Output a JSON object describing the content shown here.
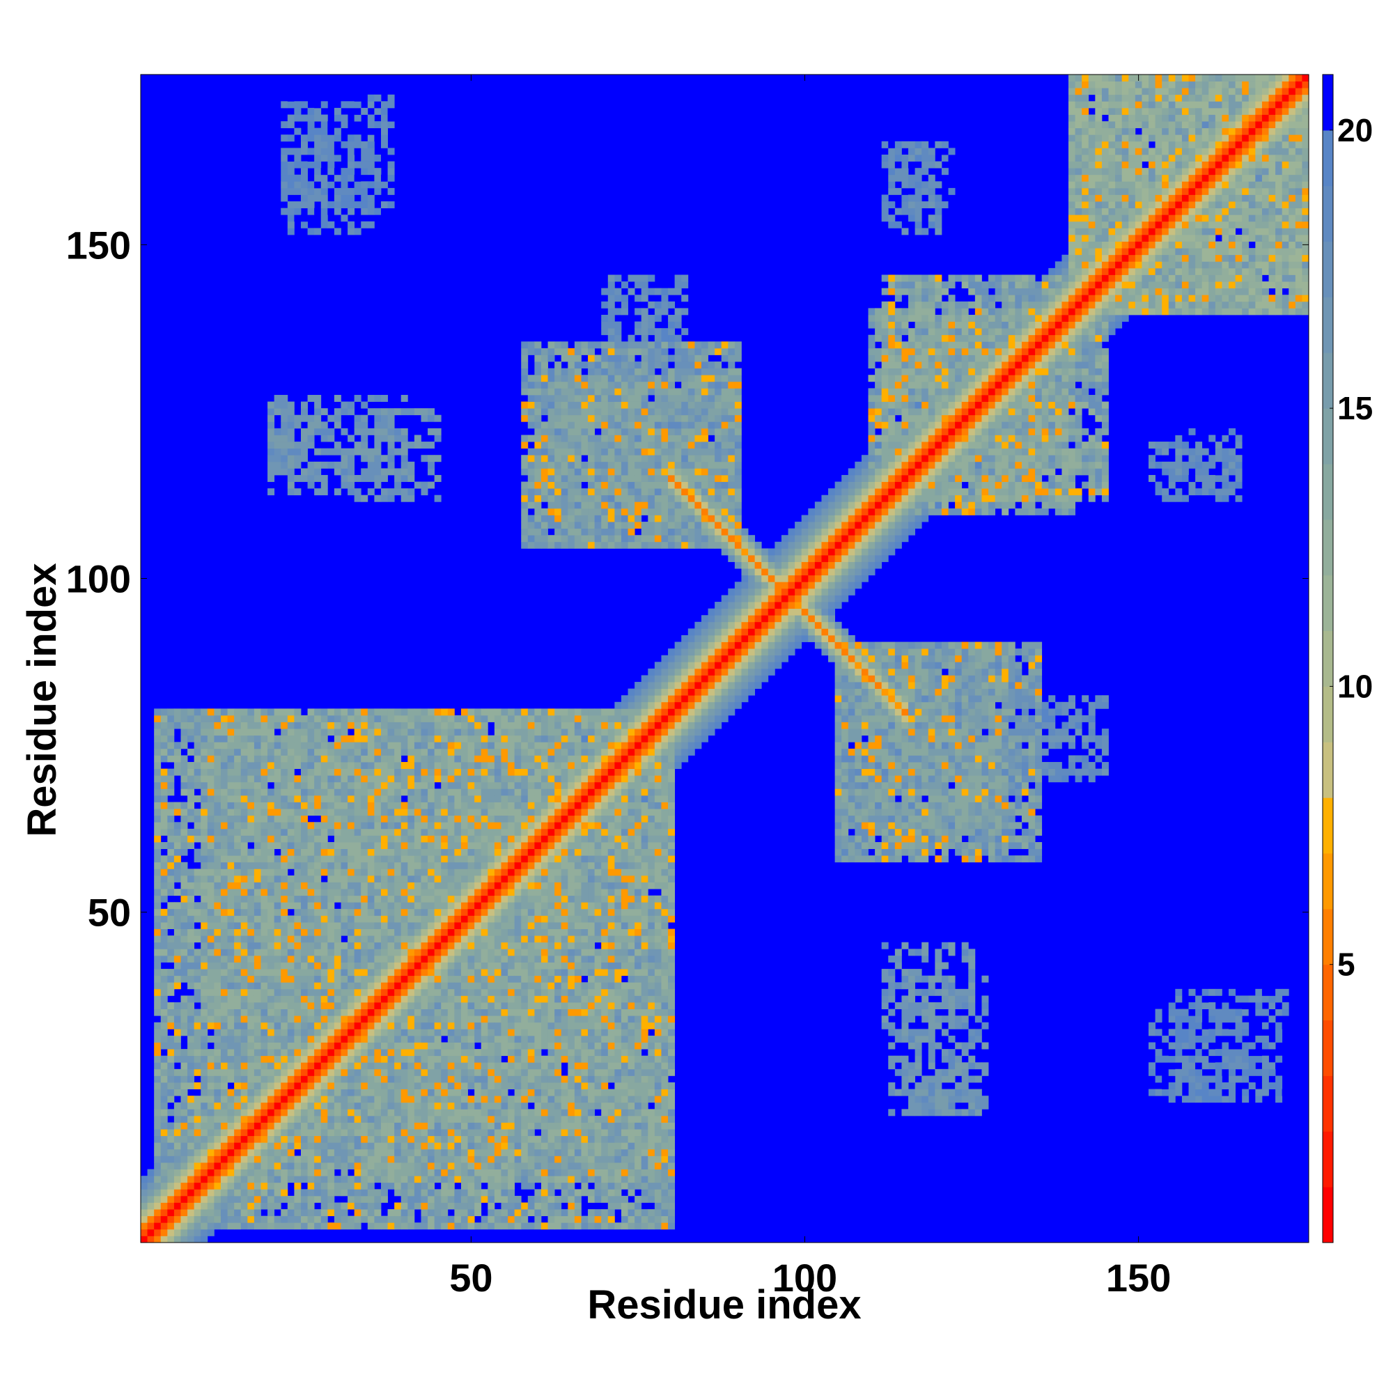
{
  "chart_data": {
    "type": "heatmap",
    "title": "",
    "xlabel": "Residue index",
    "ylabel": "Residue index",
    "xlim": [
      1,
      175
    ],
    "ylim": [
      1,
      175
    ],
    "x_ticks": [
      50,
      100,
      150
    ],
    "y_ticks": [
      50,
      100,
      150
    ],
    "x_tick_labels": [
      "50",
      "100",
      "150"
    ],
    "y_tick_labels": [
      "50",
      "100",
      "150"
    ],
    "grid": false,
    "colorbar": {
      "min": 0,
      "max": 21,
      "ticks": [
        5,
        10,
        15,
        20
      ],
      "tick_labels": [
        "5",
        "10",
        "15",
        "20"
      ],
      "bins": [
        {
          "max": 1,
          "color": "#ff0000"
        },
        {
          "max": 2,
          "color": "#ff1a00"
        },
        {
          "max": 3,
          "color": "#ff3300"
        },
        {
          "max": 4,
          "color": "#ff4d00"
        },
        {
          "max": 5,
          "color": "#ff6600"
        },
        {
          "max": 6,
          "color": "#ff7f00"
        },
        {
          "max": 7,
          "color": "#ff9900"
        },
        {
          "max": 8,
          "color": "#ffb000"
        },
        {
          "max": 9,
          "color": "#c8c080"
        },
        {
          "max": 10,
          "color": "#b4bc88"
        },
        {
          "max": 11,
          "color": "#a8b890"
        },
        {
          "max": 12,
          "color": "#9cb498"
        },
        {
          "max": 13,
          "color": "#92ae9c"
        },
        {
          "max": 14,
          "color": "#88a8a0"
        },
        {
          "max": 15,
          "color": "#80a2a6"
        },
        {
          "max": 16,
          "color": "#789cac"
        },
        {
          "max": 17,
          "color": "#7096b4"
        },
        {
          "max": 18,
          "color": "#6890ba"
        },
        {
          "max": 19,
          "color": "#608ac0"
        },
        {
          "max": 20,
          "color": "#5885c6"
        },
        {
          "max": 21,
          "color": "#0000ff"
        }
      ]
    },
    "background_value": 21,
    "structure": {
      "diagonal": [
        {
          "offset": 0,
          "value": 1
        },
        {
          "offset": 1,
          "value": 3.5
        },
        {
          "offset": 2,
          "value": 6
        },
        {
          "offset": 3,
          "value": 8.5
        },
        {
          "offset": 4,
          "value": 11
        },
        {
          "offset": 5,
          "value": 13.5
        },
        {
          "offset": 6,
          "value": 15.5
        },
        {
          "offset": 7,
          "value": 17
        },
        {
          "offset": 8,
          "value": 18.5
        },
        {
          "offset": 9,
          "value": 19.5
        }
      ],
      "antidiagonal_band": {
        "sum": 195,
        "from": 80,
        "to": 115,
        "values": [
          6,
          9,
          13,
          17
        ]
      },
      "domains": [
        {
          "x": [
            3,
            80
          ],
          "y": [
            10,
            80
          ],
          "value": 15
        },
        {
          "x": [
            58,
            90
          ],
          "y": [
            105,
            135
          ],
          "value": 16
        },
        {
          "x": [
            105,
            130
          ],
          "y": [
            60,
            90
          ],
          "value": 16
        },
        {
          "x": [
            110,
            145
          ],
          "y": [
            112,
            140
          ],
          "value": 15
        },
        {
          "x": [
            140,
            175
          ],
          "y": [
            140,
            175
          ],
          "value": 14
        }
      ],
      "patches": [
        {
          "x": [
            20,
            30
          ],
          "y": [
            115,
            125
          ],
          "value": 17
        },
        {
          "x": [
            33,
            45
          ],
          "y": [
            112,
            125
          ],
          "value": 17
        },
        {
          "x": [
            113,
            127
          ],
          "y": [
            30,
            40
          ],
          "value": 17
        },
        {
          "x": [
            113,
            127
          ],
          "y": [
            20,
            28
          ],
          "value": 17
        },
        {
          "x": [
            132,
            145
          ],
          "y": [
            70,
            82
          ],
          "value": 18
        },
        {
          "x": [
            152,
            165
          ],
          "y": [
            112,
            120
          ],
          "value": 18
        },
        {
          "x": [
            152,
            168
          ],
          "y": [
            22,
            35
          ],
          "value": 19
        },
        {
          "x": [
            113,
            122
          ],
          "y": [
            155,
            165
          ],
          "value": 19
        },
        {
          "x": [
            22,
            38
          ],
          "y": [
            155,
            172
          ],
          "value": 19
        }
      ]
    }
  }
}
